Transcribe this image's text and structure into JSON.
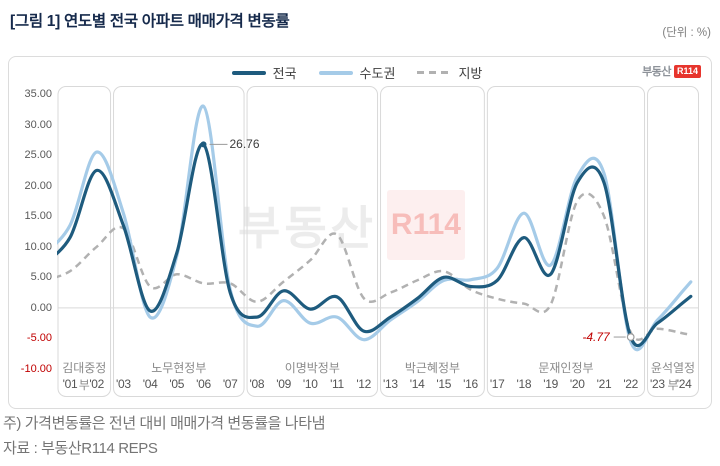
{
  "header": {
    "title": "[그림 1] 연도별 전국 아파트 매매가격 변동률",
    "unit_label": "(단위 : %)"
  },
  "brand": {
    "text": "부동산",
    "badge": "R114",
    "red": "#e7352d"
  },
  "watermark": {
    "text": "부동산",
    "badge": "R114"
  },
  "chart_data": {
    "type": "line",
    "x": [
      "'01",
      "'02",
      "'03",
      "'04",
      "'05",
      "'06",
      "'07",
      "'08",
      "'09",
      "'10",
      "'11",
      "'12",
      "'13",
      "'14",
      "'15",
      "'16",
      "'17",
      "'18",
      "'19",
      "'20",
      "'21",
      "'22",
      "'23",
      "'24"
    ],
    "ylim": [
      -10,
      35
    ],
    "ytick_labels": [
      "35.00",
      "30.00",
      "25.00",
      "20.00",
      "15.00",
      "10.00",
      "5.00",
      "0.00",
      "-5.00",
      "-10.00"
    ],
    "negative_tick_color": "#c00000",
    "grid": "zero-line-only",
    "legend_position": "top-center",
    "series": [
      {
        "name": "전국",
        "key": "national",
        "color": "#1e5b7e",
        "style": "solid",
        "width": 3.2,
        "values": [
          11.5,
          22.5,
          13.5,
          -0.5,
          9.0,
          26.76,
          2.5,
          -1.5,
          2.8,
          -0.2,
          1.8,
          -3.8,
          -1.5,
          1.5,
          5.0,
          3.5,
          4.5,
          11.5,
          5.5,
          20.5,
          20.5,
          -4.77,
          -2.5,
          1.0
        ]
      },
      {
        "name": "수도권",
        "key": "metro",
        "color": "#a5cbe8",
        "style": "solid",
        "width": 3.2,
        "values": [
          13.5,
          25.5,
          15.5,
          -1.5,
          8.5,
          33.0,
          3.0,
          -3.0,
          1.2,
          -2.5,
          -1.5,
          -5.2,
          -2.0,
          1.0,
          4.5,
          4.6,
          6.5,
          15.5,
          7.0,
          21.5,
          22.0,
          -5.5,
          -2.0,
          3.0
        ]
      },
      {
        "name": "지방",
        "key": "provincial",
        "color": "#b1b1b1",
        "style": "dashed",
        "width": 2.5,
        "values": [
          6.0,
          10.0,
          13.0,
          3.5,
          5.5,
          4.0,
          4.0,
          1.0,
          4.3,
          7.8,
          12.0,
          1.6,
          2.5,
          4.5,
          6.0,
          3.0,
          1.5,
          0.7,
          0.5,
          17.5,
          15.0,
          -4.0,
          -3.4,
          -4.2
        ]
      }
    ],
    "annotations": [
      {
        "text": "26.76",
        "series": "전국",
        "x": "'06",
        "value": 26.76,
        "side": "right",
        "marker": "dot",
        "color": "#3d3d3d",
        "emphasis": "normal"
      },
      {
        "text": "-4.77",
        "series": "전국",
        "x": "'22",
        "value": -4.77,
        "side": "left",
        "marker": "circle",
        "color": "#c00000",
        "emphasis": "italic"
      }
    ],
    "government_periods": [
      {
        "label": "김대중정부",
        "from": "'01",
        "to": "'02"
      },
      {
        "label": "노무현정부",
        "from": "'03",
        "to": "'07"
      },
      {
        "label": "이명박정부",
        "from": "'08",
        "to": "'12"
      },
      {
        "label": "박근혜정부",
        "from": "'13",
        "to": "'16"
      },
      {
        "label": "문재인정부",
        "from": "'17",
        "to": "'22"
      },
      {
        "label": "윤석열정부",
        "from": "'23",
        "to": "'24"
      }
    ]
  },
  "footnotes": [
    "주) 가격변동률은 전년 대비 매매가격 변동률을 나타냄",
    "자료 : 부동산R114 REPS"
  ]
}
